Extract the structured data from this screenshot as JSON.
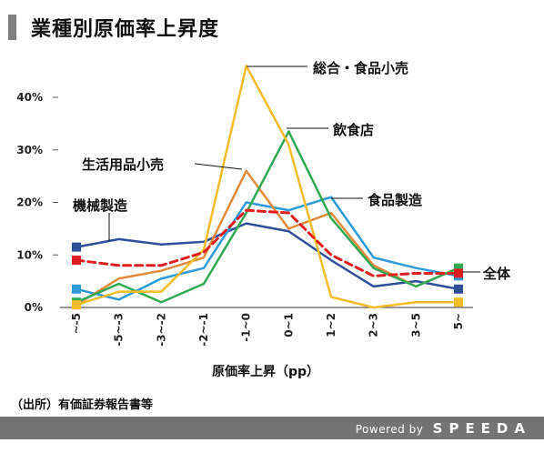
{
  "header": {
    "title": "業種別原価率上昇度"
  },
  "chart_data": {
    "type": "line",
    "title": "業種別原価率上昇度",
    "xlabel": "原価率上昇（pp）",
    "ylabel": "",
    "categories": [
      "~-5",
      "-5~-3",
      "-3~-2",
      "-2~-1",
      "-1~0",
      "0~1",
      "1~2",
      "2~3",
      "3~5",
      "5~"
    ],
    "ylim": [
      0,
      40
    ],
    "yticks": [
      {
        "value": 0,
        "label": "0%"
      },
      {
        "value": 10,
        "label": "10%"
      },
      {
        "value": 20,
        "label": "20%"
      },
      {
        "value": 30,
        "label": "30%"
      },
      {
        "value": 40,
        "label": "40%"
      }
    ],
    "grid": false,
    "series": [
      {
        "name": "総合・食品小売",
        "color": "#f2bc2a",
        "dashed": false,
        "values": [
          0.5,
          3,
          3,
          11,
          46,
          31,
          2,
          0,
          1,
          1
        ]
      },
      {
        "name": "飲食店",
        "color": "#33a853",
        "dashed": false,
        "values": [
          1,
          4.5,
          1,
          4.5,
          18,
          33.5,
          17,
          7.5,
          4,
          7.5
        ]
      },
      {
        "name": "生活用品小売",
        "color": "#e08a3e",
        "dashed": false,
        "values": [
          0.5,
          5.5,
          7,
          9.5,
          26,
          15,
          18,
          8,
          4,
          7.5
        ]
      },
      {
        "name": "機械製造",
        "color": "#2f4f9a",
        "dashed": false,
        "values": [
          11.5,
          13,
          12,
          12.5,
          16,
          14.5,
          9,
          4,
          5,
          3.5
        ]
      },
      {
        "name": "食品製造",
        "color": "#2e9ad8",
        "dashed": false,
        "values": [
          3.5,
          1.5,
          5.5,
          7.5,
          20,
          18.5,
          21,
          9.5,
          7.5,
          6
        ]
      },
      {
        "name": "全体",
        "color": "#e01f22",
        "dashed": true,
        "values": [
          9,
          8,
          8,
          10.5,
          18.5,
          18,
          10,
          6,
          6.5,
          6.5
        ]
      }
    ]
  },
  "labels": {
    "retail_general": "総合・食品小売",
    "restaurant": "飲食店",
    "household_retail": "生活用品小売",
    "machinery": "機械製造",
    "food_manufacturing": "食品製造",
    "overall": "全体"
  },
  "source": "（出所）有価証券報告書等",
  "footer": {
    "powered": "Powered by",
    "brand": "SPEEDA"
  }
}
